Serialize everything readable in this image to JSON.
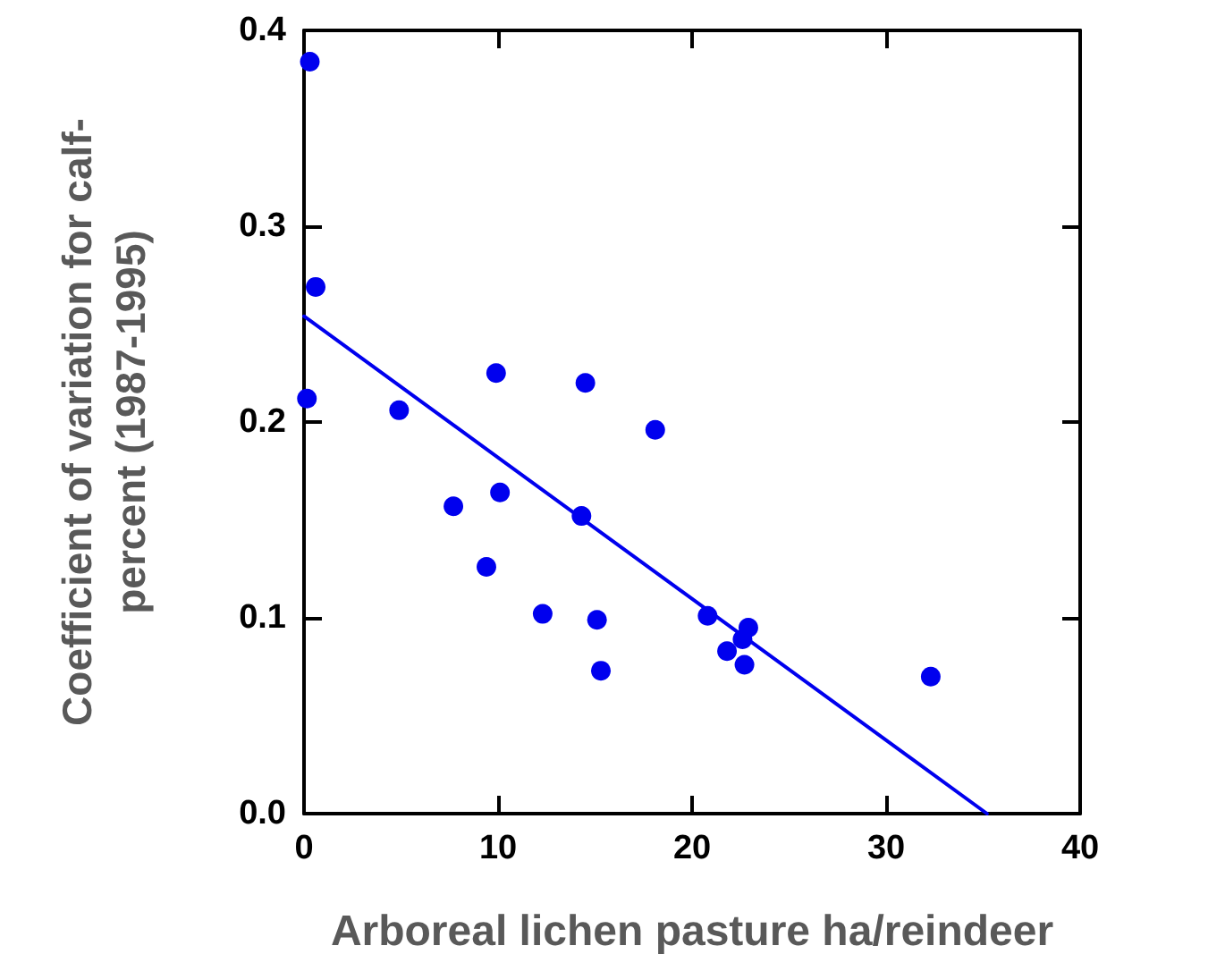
{
  "chart_data": {
    "type": "scatter",
    "xlabel": "Arboreal lichen pasture ha/reindeer",
    "ylabel": "Coefficient of variation for calf-\npercent (1987-1995)",
    "xlim": [
      0,
      40
    ],
    "xticks": [
      0,
      10,
      20,
      30,
      40
    ],
    "ylim": [
      0,
      0.4
    ],
    "yticks": [
      {
        "value": 0,
        "label": "0.0"
      },
      {
        "value": 0.1,
        "label": "0.1"
      },
      {
        "value": 0.2,
        "label": "0.2"
      },
      {
        "value": 0.3,
        "label": "0.3"
      },
      {
        "value": 0.4,
        "label": "0.4"
      }
    ],
    "grid": false,
    "marker": "circle",
    "series": [
      {
        "color": "#0000ee",
        "x": [
          0.3,
          0.6,
          0.15,
          4.9,
          9.9,
          14.5,
          18.1,
          10.1,
          7.7,
          14.3,
          9.4,
          12.3,
          15.1,
          15.3,
          20.8,
          22.9,
          22.6,
          21.8,
          22.7,
          32.3
        ],
        "values": [
          0.384,
          0.269,
          0.212,
          0.206,
          0.225,
          0.22,
          0.196,
          0.164,
          0.157,
          0.152,
          0.126,
          0.102,
          0.099,
          0.073,
          0.101,
          0.095,
          0.089,
          0.083,
          0.076,
          0.07
        ]
      },
      {
        "type": "line",
        "marker": "none",
        "line_style": "solid",
        "color": "#0000ee",
        "x": [
          0,
          35.2
        ],
        "values": [
          0.254,
          0
        ]
      }
    ]
  }
}
